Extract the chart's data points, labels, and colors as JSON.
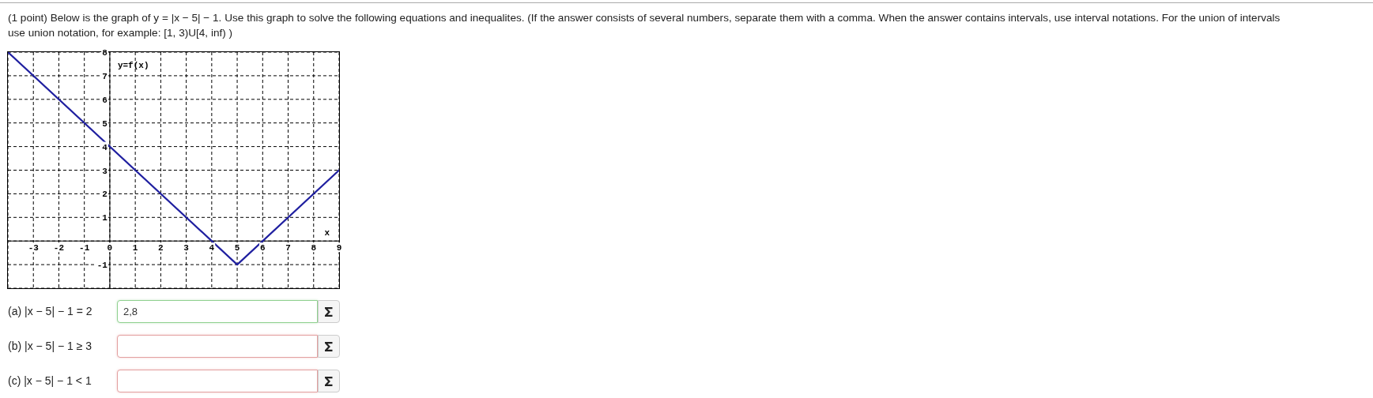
{
  "chart_data": {
    "type": "line",
    "title": "(1 point) Below is the graph of y = |x − 5| − 1. Use this graph to solve the following equations and inequalites. (If the answer consists of several numbers, separate them with a comma. When the answer contains intervals, use interval notations. For the union of intervals use union notation, for example: [1, 3)U[4, inf) )",
    "xlabel": "x",
    "ylabel": "y=f(x)",
    "x": [
      -4,
      5,
      9
    ],
    "series": [
      {
        "color": "#2020a0",
        "values": [
          8,
          -1,
          3
        ]
      }
    ],
    "xlim": [
      -4,
      9
    ],
    "ylim": [
      -2,
      8
    ],
    "xticks": [
      -3,
      -2,
      -1,
      0,
      1,
      2,
      3,
      4,
      5,
      6,
      7,
      8,
      9
    ],
    "yticks": [
      -1,
      {
        "value": 0,
        "label": null
      },
      1,
      2,
      3,
      4,
      5,
      6,
      7,
      8
    ],
    "grid": true,
    "annotations": [
      "(a) |x − 5| − 1 = 2",
      "2,8",
      "(b) |x − 5| − 1 ≥ 3",
      "(c) |x − 5| − 1 < 1"
    ]
  }
}
